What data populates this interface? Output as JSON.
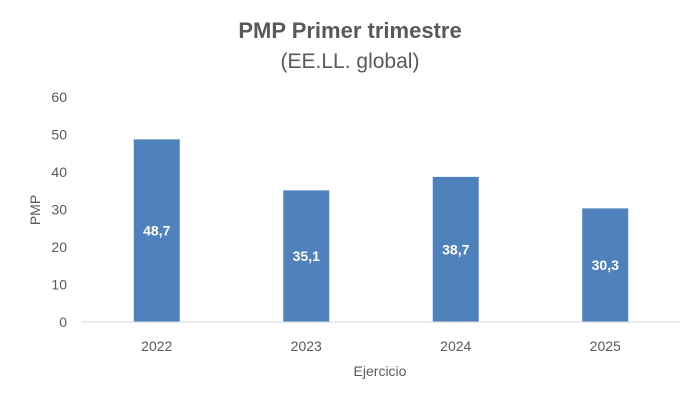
{
  "chart_data": {
    "type": "bar",
    "title": "PMP Primer trimestre",
    "subtitle": "(EE.LL. global)",
    "xlabel": "Ejercicio",
    "ylabel": "PMP",
    "categories": [
      "2022",
      "2023",
      "2024",
      "2025"
    ],
    "values": [
      48.7,
      35.1,
      38.7,
      30.3
    ],
    "data_labels": [
      "48,7",
      "35,1",
      "38,7",
      "30,3"
    ],
    "ylim": [
      0,
      60
    ],
    "yticks": [
      "0",
      "10",
      "20",
      "30",
      "40",
      "50",
      "60"
    ],
    "grid": false,
    "legend": "none",
    "bar_color": "#4F81BD",
    "axis_color": "#D9D9D9"
  }
}
